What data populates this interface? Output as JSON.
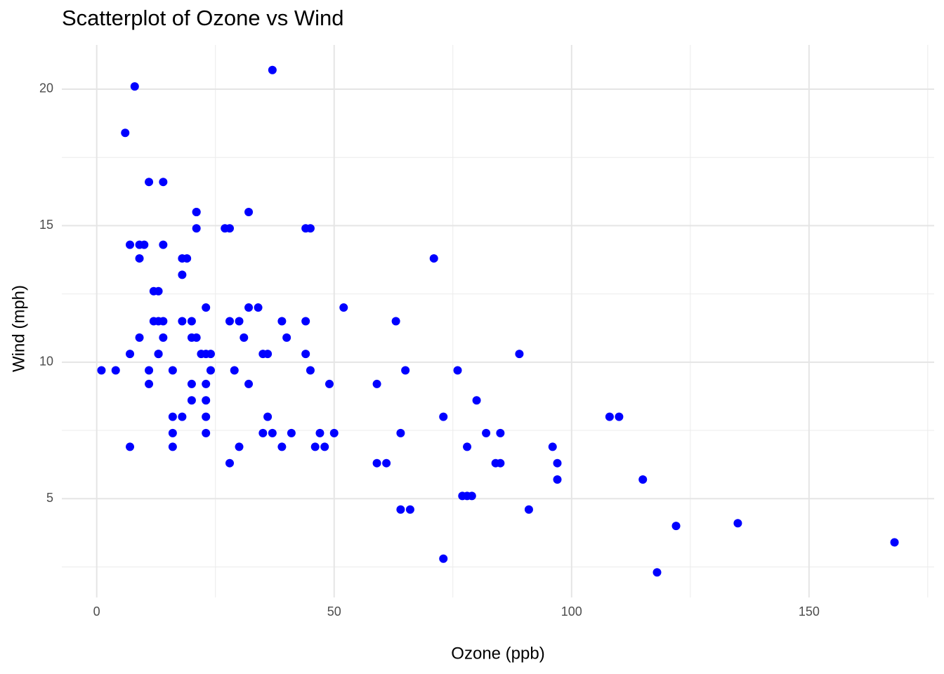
{
  "chart_data": {
    "type": "scatter",
    "title": "Scatterplot of Ozone vs Wind",
    "x_label": "Ozone (ppb)",
    "y_label": "Wind (mph)",
    "color": "#0000ff",
    "grid": true,
    "xlim": [
      -7.35,
      176.35
    ],
    "ylim": [
      1.38,
      21.62
    ],
    "xticks": [
      0,
      50,
      100,
      150
    ],
    "yticks": [
      5,
      10,
      15,
      20
    ],
    "x": [
      41,
      36,
      12,
      18,
      28,
      23,
      19,
      8,
      7,
      16,
      11,
      14,
      18,
      14,
      34,
      6,
      30,
      11,
      1,
      11,
      4,
      32,
      23,
      45,
      115,
      37,
      29,
      71,
      39,
      23,
      21,
      37,
      20,
      12,
      13,
      135,
      49,
      32,
      64,
      40,
      77,
      97,
      97,
      85,
      10,
      27,
      7,
      48,
      35,
      61,
      79,
      63,
      16,
      80,
      108,
      20,
      52,
      82,
      50,
      64,
      59,
      39,
      9,
      16,
      78,
      35,
      66,
      122,
      89,
      110,
      44,
      28,
      65,
      22,
      59,
      23,
      31,
      44,
      21,
      9,
      45,
      168,
      73,
      76,
      118,
      84,
      85,
      96,
      78,
      73,
      91,
      47,
      32,
      20,
      23,
      21,
      24,
      44,
      21,
      28,
      9,
      13,
      46,
      18,
      13,
      24,
      16,
      13,
      23,
      36,
      7,
      14,
      30,
      14,
      18,
      20
    ],
    "values": [
      7.4,
      8.0,
      12.6,
      11.5,
      14.9,
      8.6,
      13.8,
      20.1,
      6.9,
      9.7,
      9.2,
      10.9,
      13.2,
      11.5,
      12.0,
      18.4,
      11.5,
      9.7,
      9.7,
      16.6,
      9.7,
      12.0,
      12.0,
      14.9,
      5.7,
      7.4,
      9.7,
      13.8,
      11.5,
      8.0,
      14.9,
      20.7,
      9.2,
      11.5,
      10.3,
      4.1,
      9.2,
      9.2,
      4.6,
      10.9,
      5.1,
      6.3,
      5.7,
      7.4,
      14.3,
      14.9,
      14.3,
      6.9,
      10.3,
      6.3,
      5.1,
      11.5,
      6.9,
      8.6,
      8.0,
      8.6,
      12.0,
      7.4,
      7.4,
      7.4,
      9.2,
      6.9,
      13.8,
      7.4,
      6.9,
      7.4,
      4.6,
      4.0,
      10.3,
      8.0,
      11.5,
      11.5,
      9.7,
      10.3,
      6.3,
      7.4,
      10.9,
      10.3,
      15.5,
      14.3,
      9.7,
      3.4,
      8.0,
      9.7,
      2.3,
      6.3,
      6.3,
      6.9,
      5.1,
      2.8,
      4.6,
      7.4,
      15.5,
      10.9,
      10.3,
      10.9,
      9.7,
      14.9,
      15.5,
      6.3,
      10.9,
      11.5,
      6.9,
      13.8,
      10.3,
      10.3,
      8.0,
      12.6,
      9.2,
      10.3,
      10.3,
      16.6,
      6.9,
      14.3,
      8.0,
      11.5
    ]
  }
}
